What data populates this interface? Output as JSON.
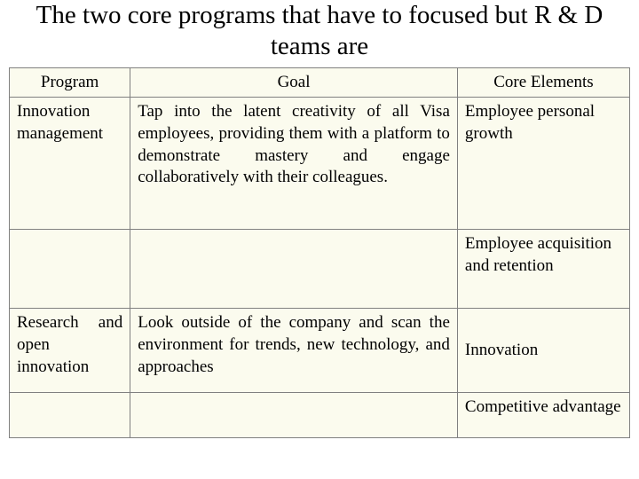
{
  "title": "The two core programs that have to focused but R & D teams are",
  "table": {
    "headers": {
      "program": "Program",
      "goal": "Goal",
      "core": "Core Elements"
    },
    "rows": {
      "r1": {
        "program": "Innovation management",
        "goal": "Tap into the latent creativity of all Visa employees, providing them with a platform to demonstrate mastery and engage collaboratively with their colleagues.",
        "core": "Employee personal growth"
      },
      "r2": {
        "program": "",
        "goal": "",
        "core": "Employee acquisition and retention"
      },
      "r3": {
        "program": "Research and open innovation",
        "goal": "Look outside of the company and scan the environment for trends, new technology, and approaches",
        "core": "Innovation"
      },
      "r4": {
        "program": "",
        "goal": "",
        "core": "Competitive advantage"
      }
    }
  },
  "style": {
    "background_color": "#ffffff",
    "table_background": "#fbfbee",
    "border_color": "#808080",
    "title_fontsize": 29,
    "cell_fontsize": 19
  }
}
